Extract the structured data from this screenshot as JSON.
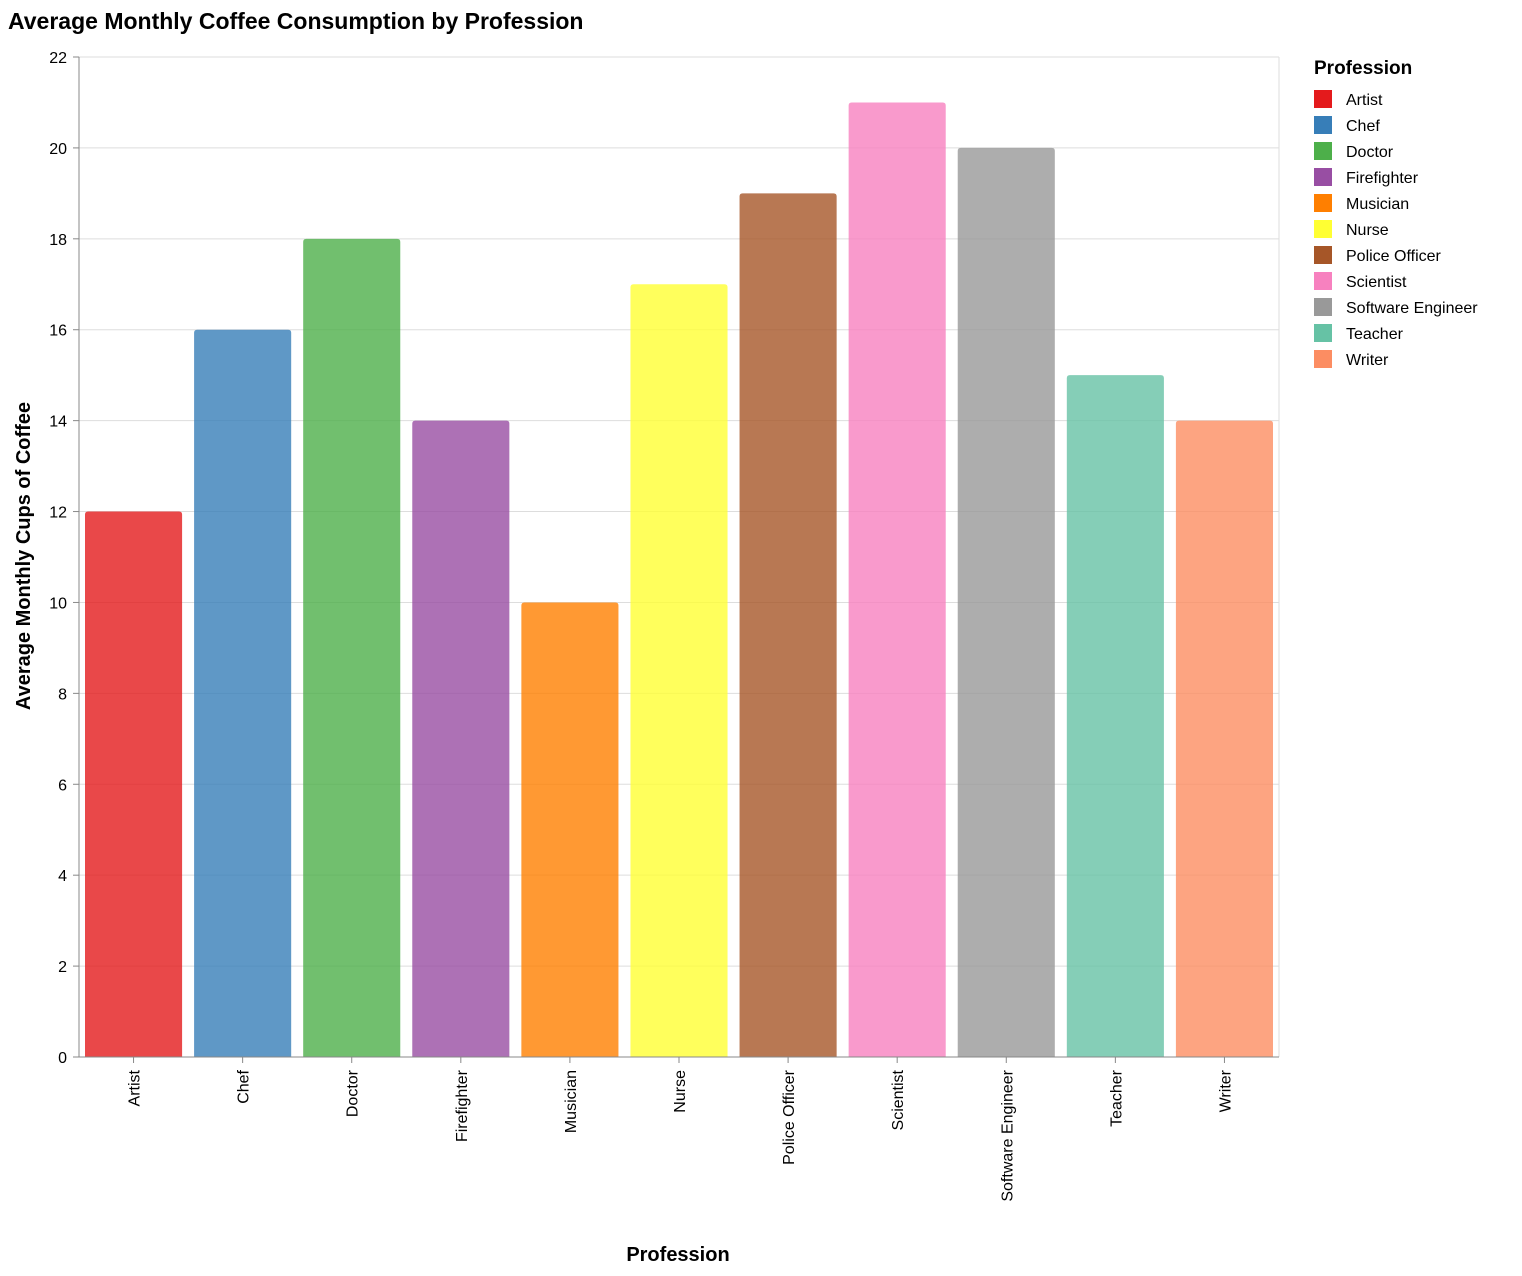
{
  "chart_data": {
    "type": "bar",
    "title": "Average Monthly Coffee Consumption by Profession",
    "xlabel": "Profession",
    "ylabel": "Average Monthly Cups of Coffee",
    "ylim": [
      0,
      22
    ],
    "yticks": [
      0,
      2,
      4,
      6,
      8,
      10,
      12,
      14,
      16,
      18,
      20,
      22
    ],
    "grid": true,
    "legend_title": "Profession",
    "legend_position": "right",
    "categories": [
      "Artist",
      "Chef",
      "Doctor",
      "Firefighter",
      "Musician",
      "Nurse",
      "Police Officer",
      "Scientist",
      "Software Engineer",
      "Teacher",
      "Writer"
    ],
    "values": [
      12,
      16,
      18,
      14,
      10,
      17,
      19,
      21,
      20,
      15,
      14
    ],
    "colors": [
      "#e41a1c",
      "#377eb8",
      "#4daf4a",
      "#984ea3",
      "#ff7f00",
      "#ffff33",
      "#a65628",
      "#f781bf",
      "#999999",
      "#66c2a5",
      "#fc8d62"
    ]
  }
}
